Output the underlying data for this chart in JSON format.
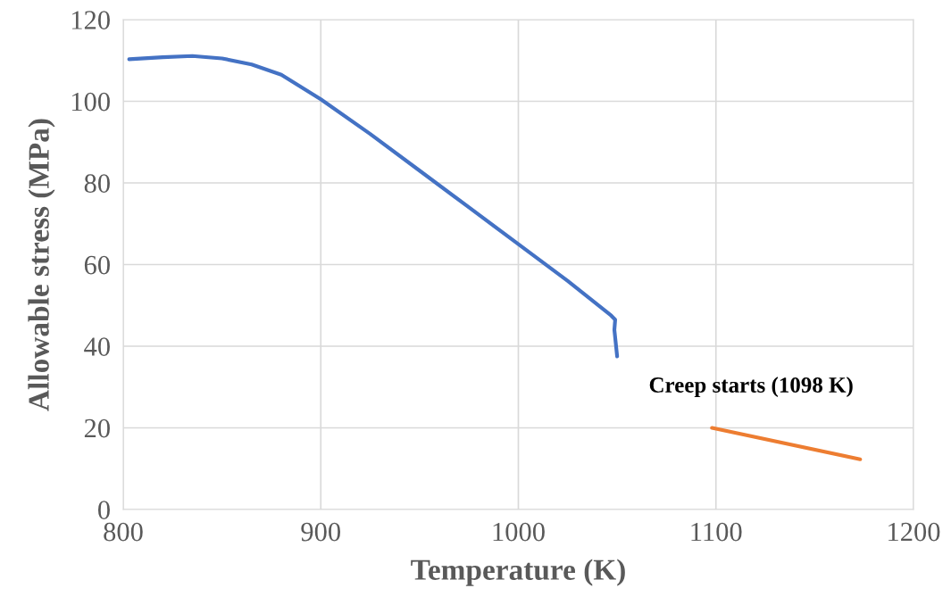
{
  "chart_data": {
    "type": "line",
    "xlabel": "Temperature (K)",
    "ylabel": "Allowable stress (MPa)",
    "xlim": [
      800,
      1200
    ],
    "xticks": [
      800,
      900,
      1000,
      1100,
      1200
    ],
    "ylim": [
      0,
      120
    ],
    "yticks": [
      0,
      20,
      40,
      60,
      80,
      100,
      120
    ],
    "grid": true,
    "marker": "none",
    "line_style": "solid",
    "series": [
      {
        "color": "#4472c4",
        "x": [
          803,
          820,
          835,
          850,
          865,
          880,
          900,
          925,
          950,
          975,
          1000,
          1025,
          1047,
          1049,
          1048.6,
          1050
        ],
        "values": [
          110.3,
          110.8,
          111.1,
          110.5,
          109,
          106.5,
          100.5,
          92,
          83,
          74,
          65,
          56,
          47.5,
          46.5,
          44,
          37.5
        ]
      },
      {
        "color": "#ed7d31",
        "x": [
          1098,
          1173
        ],
        "values": [
          20,
          12.3
        ]
      }
    ],
    "annotations": [
      {
        "text": "Creep starts (1098 K)",
        "x": 1098,
        "y": 20
      }
    ]
  }
}
